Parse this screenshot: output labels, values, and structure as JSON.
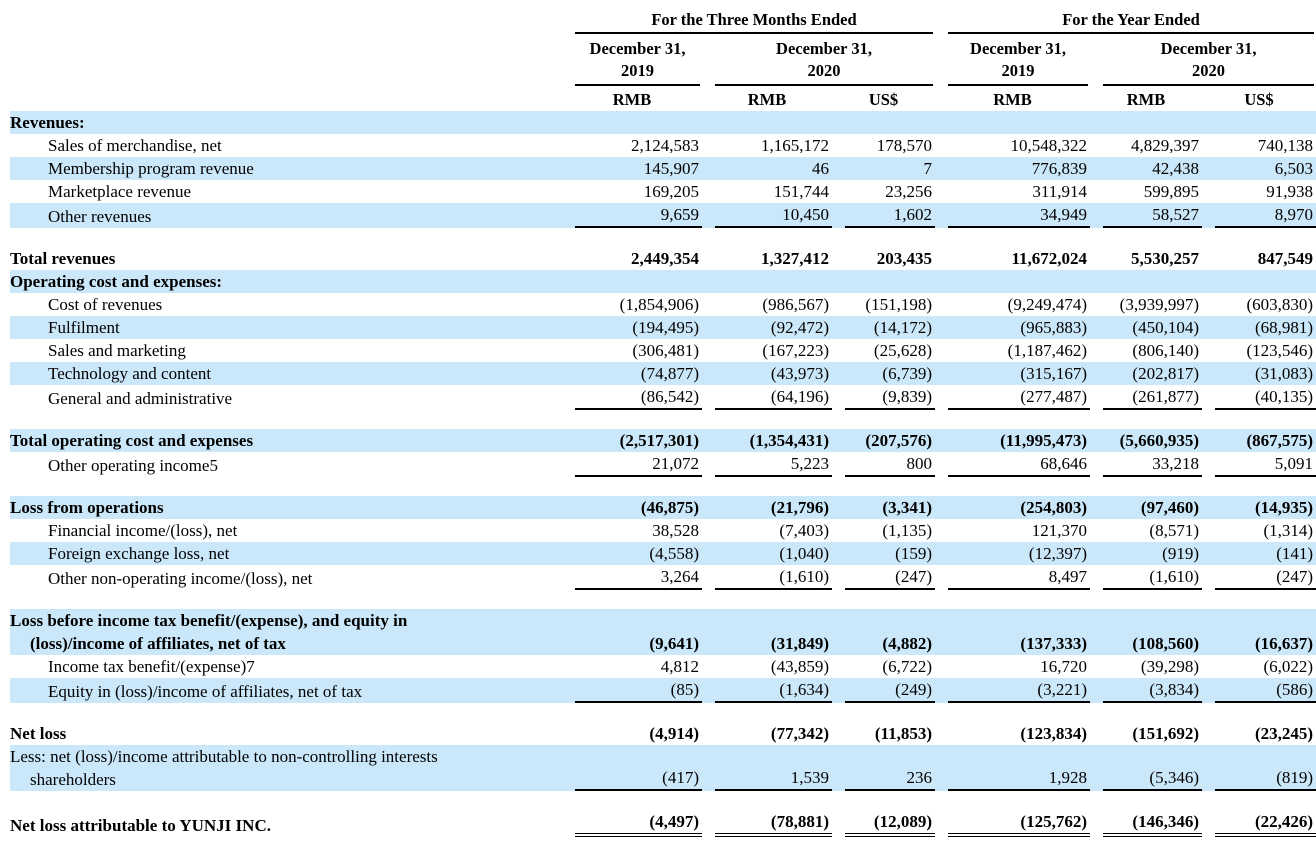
{
  "colors": {
    "stripe": "#CBE8FA",
    "rule": "#000000",
    "text": "#000000"
  },
  "table": {
    "groups": [
      {
        "title": "For the Three Months Ended"
      },
      {
        "title": "For the Year Ended"
      }
    ],
    "date_headers": [
      "December 31,\n2019",
      "December 31,\n2020",
      "December 31,\n2019",
      "December 31,\n2020"
    ],
    "unit_headers": [
      "RMB",
      "RMB",
      "US$",
      "RMB",
      "RMB",
      "US$"
    ],
    "rows": [
      {
        "type": "data",
        "label": "Revenues:",
        "bold": true,
        "indent": 0,
        "bg": "blue",
        "values": null
      },
      {
        "type": "data",
        "label": "Sales of merchandise, net",
        "bold": false,
        "indent": 1,
        "bg": "white",
        "values": [
          "2,124,583",
          "1,165,172",
          "178,570",
          "10,548,322",
          "4,829,397",
          "740,138"
        ]
      },
      {
        "type": "data",
        "label": "Membership program revenue",
        "bold": false,
        "indent": 1,
        "bg": "blue",
        "values": [
          "145,907",
          "46",
          "7",
          "776,839",
          "42,438",
          "6,503"
        ]
      },
      {
        "type": "data",
        "label": "Marketplace revenue",
        "bold": false,
        "indent": 1,
        "bg": "white",
        "values": [
          "169,205",
          "151,744",
          "23,256",
          "311,914",
          "599,895",
          "91,938"
        ]
      },
      {
        "type": "data",
        "label": "Other revenues",
        "bold": false,
        "indent": 1,
        "bg": "blue",
        "underline": "single",
        "values": [
          "9,659",
          "10,450",
          "1,602",
          "34,949",
          "58,527",
          "8,970"
        ]
      },
      {
        "type": "spacer"
      },
      {
        "type": "data",
        "label": "Total revenues",
        "bold": true,
        "indent": 0,
        "bg": "white",
        "values": [
          "2,449,354",
          "1,327,412",
          "203,435",
          "11,672,024",
          "5,530,257",
          "847,549"
        ]
      },
      {
        "type": "data",
        "label": "Operating cost and expenses:",
        "bold": true,
        "indent": 0,
        "bg": "blue",
        "values": null
      },
      {
        "type": "data",
        "label": "Cost of revenues",
        "bold": false,
        "indent": 1,
        "bg": "white",
        "values": [
          "(1,854,906)",
          "(986,567)",
          "(151,198)",
          "(9,249,474)",
          "(3,939,997)",
          "(603,830)"
        ]
      },
      {
        "type": "data",
        "label": "Fulfilment",
        "bold": false,
        "indent": 1,
        "bg": "blue",
        "values": [
          "(194,495)",
          "(92,472)",
          "(14,172)",
          "(965,883)",
          "(450,104)",
          "(68,981)"
        ]
      },
      {
        "type": "data",
        "label": "Sales and marketing",
        "bold": false,
        "indent": 1,
        "bg": "white",
        "values": [
          "(306,481)",
          "(167,223)",
          "(25,628)",
          "(1,187,462)",
          "(806,140)",
          "(123,546)"
        ]
      },
      {
        "type": "data",
        "label": "Technology and content",
        "bold": false,
        "indent": 1,
        "bg": "blue",
        "values": [
          "(74,877)",
          "(43,973)",
          "(6,739)",
          "(315,167)",
          "(202,817)",
          "(31,083)"
        ]
      },
      {
        "type": "data",
        "label": "General and administrative",
        "bold": false,
        "indent": 1,
        "bg": "white",
        "underline": "single",
        "values": [
          "(86,542)",
          "(64,196)",
          "(9,839)",
          "(277,487)",
          "(261,877)",
          "(40,135)"
        ]
      },
      {
        "type": "spacer"
      },
      {
        "type": "data",
        "label": "Total operating cost and expenses",
        "bold": true,
        "indent": 0,
        "bg": "blue",
        "values": [
          "(2,517,301)",
          "(1,354,431)",
          "(207,576)",
          "(11,995,473)",
          "(5,660,935)",
          "(867,575)"
        ]
      },
      {
        "type": "data",
        "label": "Other operating income5",
        "bold": false,
        "indent": 1,
        "bg": "white",
        "underline": "single",
        "values": [
          "21,072",
          "5,223",
          "800",
          "68,646",
          "33,218",
          "5,091"
        ]
      },
      {
        "type": "spacer"
      },
      {
        "type": "data",
        "label": "Loss from operations",
        "bold": true,
        "indent": 0,
        "bg": "blue",
        "values": [
          "(46,875)",
          "(21,796)",
          "(3,341)",
          "(254,803)",
          "(97,460)",
          "(14,935)"
        ]
      },
      {
        "type": "data",
        "label": "Financial income/(loss), net",
        "bold": false,
        "indent": 1,
        "bg": "white",
        "values": [
          "38,528",
          "(7,403)",
          "(1,135)",
          "121,370",
          "(8,571)",
          "(1,314)"
        ]
      },
      {
        "type": "data",
        "label": "Foreign exchange loss, net",
        "bold": false,
        "indent": 1,
        "bg": "blue",
        "values": [
          "(4,558)",
          "(1,040)",
          "(159)",
          "(12,397)",
          "(919)",
          "(141)"
        ]
      },
      {
        "type": "data",
        "label": "Other non-operating income/(loss), net",
        "bold": false,
        "indent": 1,
        "bg": "white",
        "underline": "single",
        "values": [
          "3,264",
          "(1,610)",
          "(247)",
          "8,497",
          "(1,610)",
          "(247)"
        ]
      },
      {
        "type": "spacer"
      },
      {
        "type": "data",
        "label": "Loss before income tax benefit/(expense), and equity in",
        "label2": "(loss)/income of affiliates, net of tax",
        "bold": true,
        "indent": 0,
        "bg": "blue",
        "values": [
          "(9,641)",
          "(31,849)",
          "(4,882)",
          "(137,333)",
          "(108,560)",
          "(16,637)"
        ]
      },
      {
        "type": "data",
        "label": "Income tax benefit/(expense)7",
        "bold": false,
        "indent": 1,
        "bg": "white",
        "values": [
          "4,812",
          "(43,859)",
          "(6,722)",
          "16,720",
          "(39,298)",
          "(6,022)"
        ]
      },
      {
        "type": "data",
        "label": "Equity in (loss)/income of affiliates, net of tax",
        "bold": false,
        "indent": 1,
        "bg": "blue",
        "underline": "single",
        "values": [
          "(85)",
          "(1,634)",
          "(249)",
          "(3,221)",
          "(3,834)",
          "(586)"
        ]
      },
      {
        "type": "spacer"
      },
      {
        "type": "data",
        "label": "Net loss",
        "bold": true,
        "indent": 0,
        "bg": "white",
        "values": [
          "(4,914)",
          "(77,342)",
          "(11,853)",
          "(123,834)",
          "(151,692)",
          "(23,245)"
        ]
      },
      {
        "type": "data",
        "label": "Less: net (loss)/income attributable to non-controlling interests",
        "label2": "shareholders",
        "bold": false,
        "indent": 0,
        "bg": "blue",
        "underline": "single",
        "values": [
          "(417)",
          "1,539",
          "236",
          "1,928",
          "(5,346)",
          "(819)"
        ]
      },
      {
        "type": "spacer"
      },
      {
        "type": "data",
        "label": "Net loss attributable to YUNJI INC.",
        "bold": true,
        "indent": 0,
        "bg": "white",
        "underline": "double",
        "tall": true,
        "values": [
          "(4,497)",
          "(78,881)",
          "(12,089)",
          "(125,762)",
          "(146,346)",
          "(22,426)"
        ]
      }
    ]
  }
}
